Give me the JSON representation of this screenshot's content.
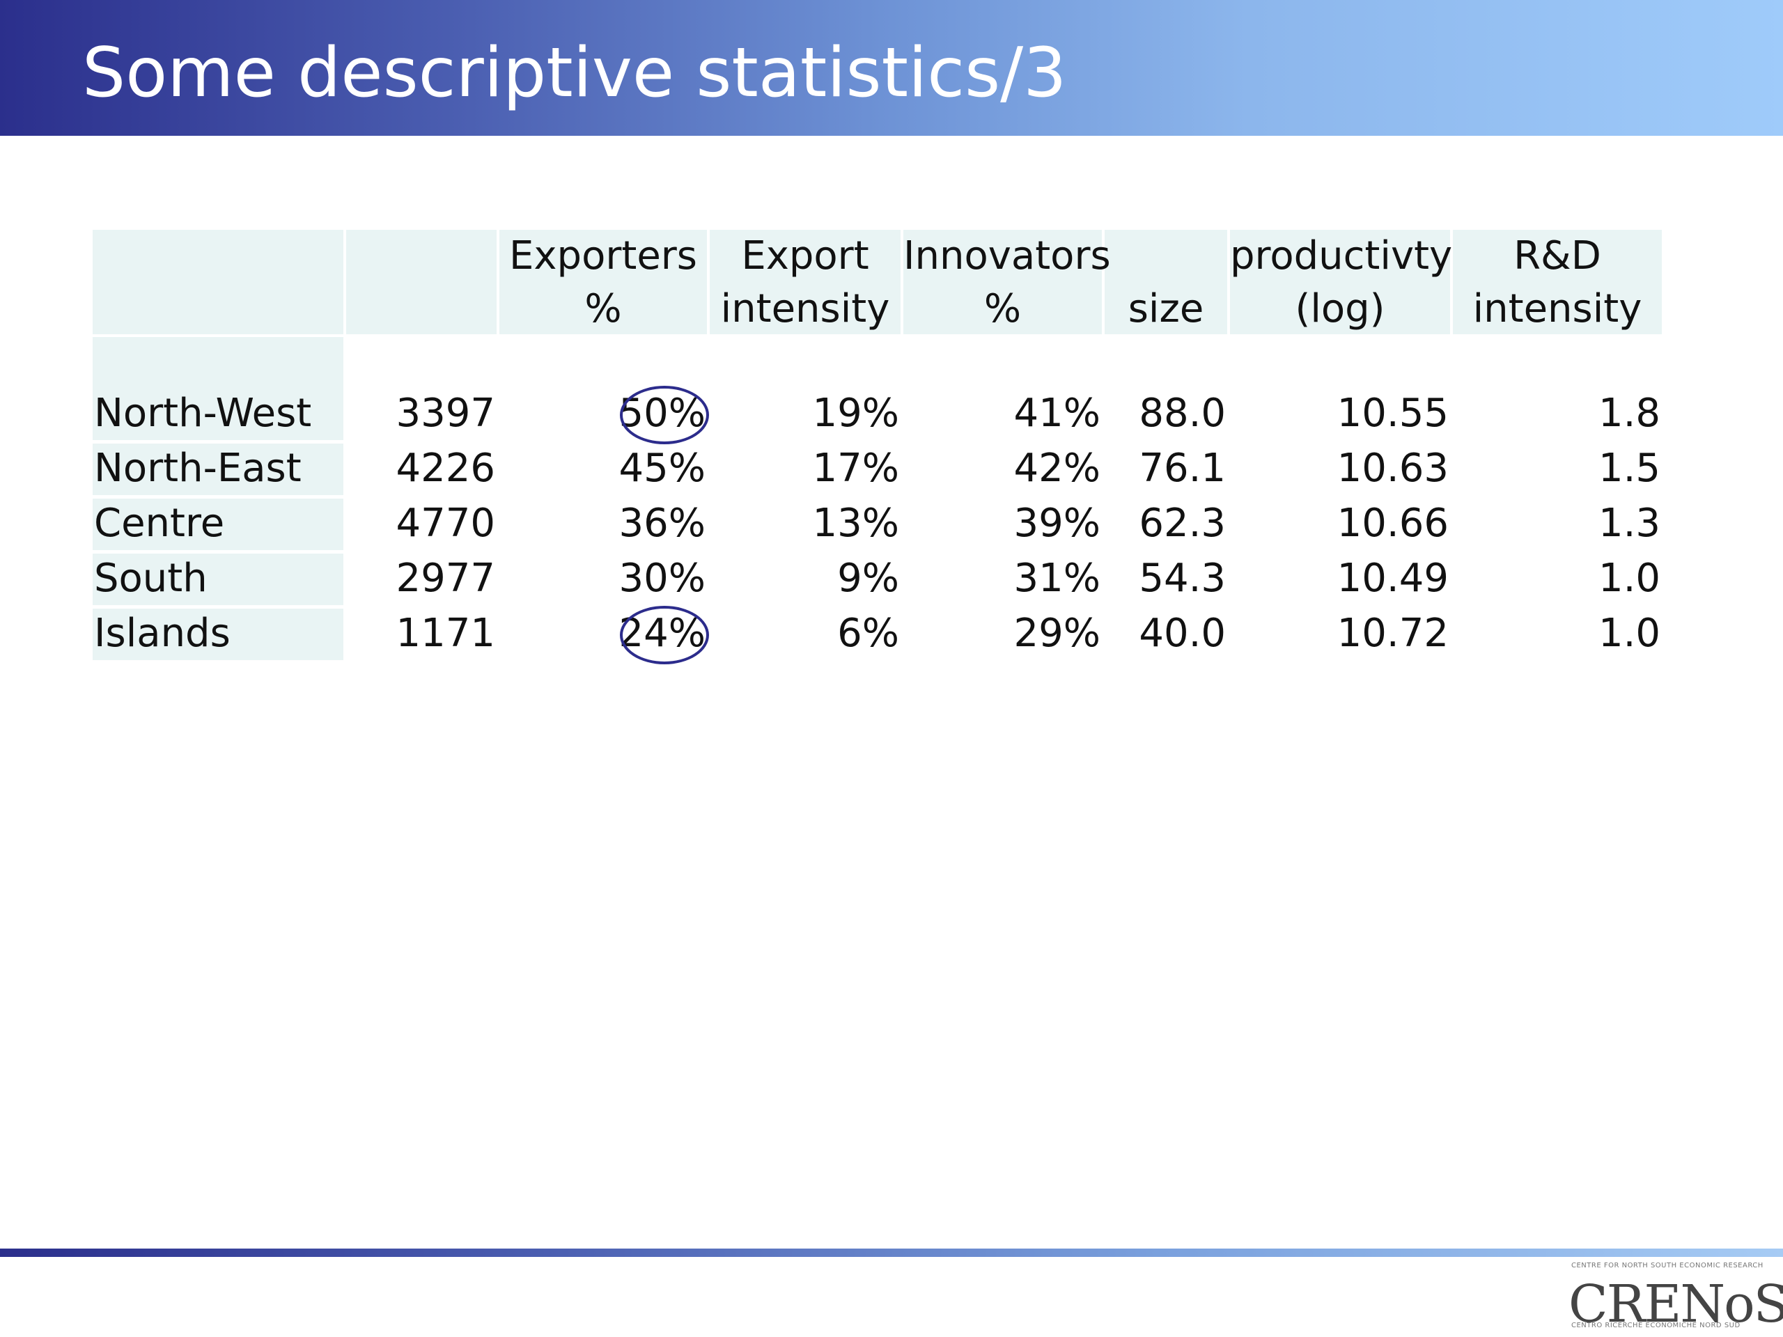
{
  "slide": {
    "title": "Some descriptive statistics/3"
  },
  "table": {
    "headers": [
      {
        "line1": "",
        "line2": ""
      },
      {
        "line1": "Exporters",
        "line2": "%"
      },
      {
        "line1": "Export",
        "line2": "intensity"
      },
      {
        "line1": "Innovators",
        "line2": "%"
      },
      {
        "line1": "",
        "line2": "size"
      },
      {
        "line1": "productivty",
        "line2": "(log)"
      },
      {
        "line1": "R&D",
        "line2": "intensity"
      }
    ],
    "rows": [
      {
        "region": "North-West",
        "n": "3397",
        "exporters": "50%",
        "export_intensity": "19%",
        "innovators": "41%",
        "size": "88.0",
        "productivity": "10.55",
        "rd": "1.8",
        "highlight": true
      },
      {
        "region": "North-East",
        "n": "4226",
        "exporters": "45%",
        "export_intensity": "17%",
        "innovators": "42%",
        "size": "76.1",
        "productivity": "10.63",
        "rd": "1.5",
        "highlight": false
      },
      {
        "region": "Centre",
        "n": "4770",
        "exporters": "36%",
        "export_intensity": "13%",
        "innovators": "39%",
        "size": "62.3",
        "productivity": "10.66",
        "rd": "1.3",
        "highlight": false
      },
      {
        "region": "South",
        "n": "2977",
        "exporters": "30%",
        "export_intensity": "9%",
        "innovators": "31%",
        "size": "54.3",
        "productivity": "10.49",
        "rd": "1.0",
        "highlight": false
      },
      {
        "region": "Islands",
        "n": "1171",
        "exporters": "24%",
        "export_intensity": "6%",
        "innovators": "29%",
        "size": "40.0",
        "productivity": "10.72",
        "rd": "1.0",
        "highlight": true
      }
    ]
  },
  "logo": {
    "name": "CRENoS",
    "top_line": "CENTRE FOR NORTH SOUTH ECONOMIC RESEARCH",
    "bottom_line": "CENTRO RICERCHE ECONOMICHE NORD SUD"
  },
  "colors": {
    "header_dark": "#2b2f8c",
    "header_light": "#9fcbfa",
    "cell_shade": "#e9f4f4",
    "circle": "#2c2c8c"
  }
}
